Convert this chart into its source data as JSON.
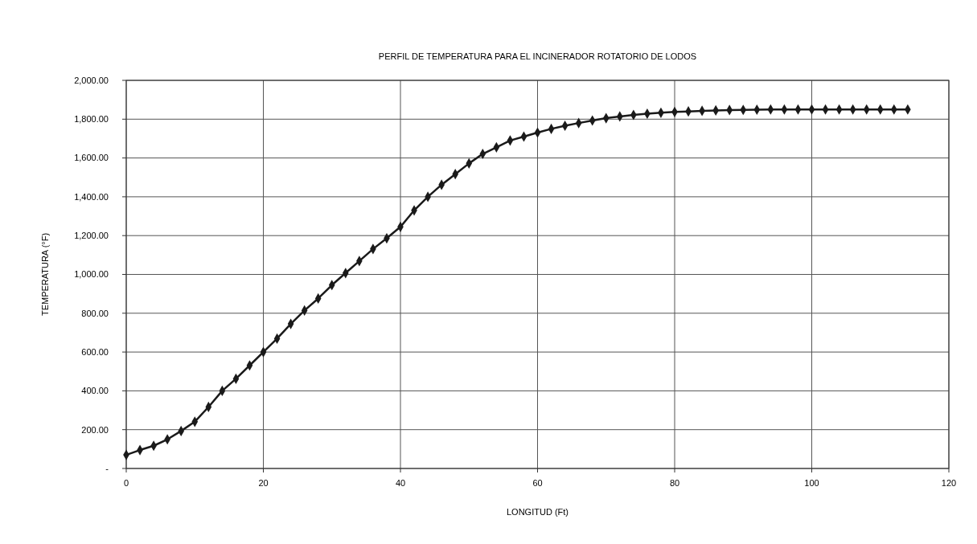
{
  "chart_data": {
    "type": "line",
    "title": "PERFIL DE TEMPERATURA PARA EL INCINERADOR ROTATORIO DE LODOS",
    "xlabel": "LONGITUD (Ft)",
    "ylabel": "TEMPERATURA (°F)",
    "x": [
      0,
      2,
      4,
      6,
      8,
      10,
      12,
      14,
      16,
      18,
      20,
      22,
      24,
      26,
      28,
      30,
      32,
      34,
      36,
      38,
      40,
      42,
      44,
      46,
      48,
      50,
      52,
      54,
      56,
      58,
      60,
      62,
      64,
      66,
      68,
      70,
      72,
      74,
      76,
      78,
      80,
      82,
      84,
      86,
      88,
      90,
      92,
      94,
      96,
      98,
      100,
      102,
      104,
      106,
      108,
      110,
      112,
      114
    ],
    "series": [
      {
        "color": "#1a1a1a",
        "values": [
          70,
          95,
          117,
          150,
          193,
          241,
          317,
          400,
          462,
          531,
          600,
          669,
          745,
          814,
          876,
          945,
          1007,
          1069,
          1131,
          1186,
          1245,
          1330,
          1400,
          1462,
          1517,
          1572,
          1621,
          1655,
          1690,
          1710,
          1731,
          1750,
          1766,
          1780,
          1793,
          1805,
          1814,
          1822,
          1828,
          1833,
          1837,
          1840,
          1843,
          1845,
          1847,
          1848,
          1849,
          1850,
          1850,
          1850,
          1850,
          1850,
          1850,
          1850,
          1850,
          1850,
          1850,
          1850
        ]
      }
    ],
    "xlim": [
      0,
      120
    ],
    "xticks": [
      0,
      20,
      40,
      60,
      80,
      100,
      120
    ],
    "ylim": [
      0,
      2000
    ],
    "yticks": [
      {
        "value": 0,
        "label": "-"
      },
      {
        "value": 200,
        "label": "200.00"
      },
      {
        "value": 400,
        "label": "400.00"
      },
      {
        "value": 600,
        "label": "600.00"
      },
      {
        "value": 800,
        "label": "800.00"
      },
      {
        "value": 1000,
        "label": "1,000.00"
      },
      {
        "value": 1200,
        "label": "1,200.00"
      },
      {
        "value": 1400,
        "label": "1,400.00"
      },
      {
        "value": 1600,
        "label": "1,600.00"
      },
      {
        "value": 1800,
        "label": "1,800.00"
      },
      {
        "value": 2000,
        "label": "2,000.00"
      }
    ],
    "grid": true,
    "marker": "diamond",
    "line_style": "solid"
  }
}
